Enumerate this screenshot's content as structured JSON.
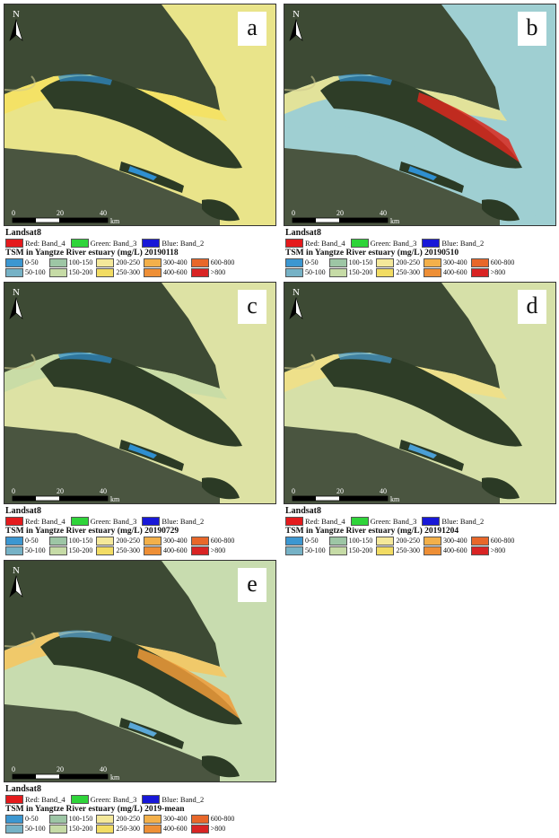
{
  "figure": {
    "panels": [
      {
        "letter": "a",
        "title": "TSM in Yangtze River estuary (mg/L) 20190118",
        "water": "#e9e48a",
        "water2": "#f4e266",
        "accent": "#2f8fd0",
        "hot": ""
      },
      {
        "letter": "b",
        "title": "TSM in Yangtze River estuary (mg/L) 20190510",
        "water": "#9fcfd2",
        "water2": "#e2e29a",
        "accent": "#2f8fd0",
        "hot": "#d9281e"
      },
      {
        "letter": "c",
        "title": "TSM in Yangtze River estuary (mg/L) 20190729",
        "water": "#dde2a4",
        "water2": "#c9dca6",
        "accent": "#2f8fd0",
        "hot": ""
      },
      {
        "letter": "d",
        "title": "TSM in Yangtze River estuary (mg/L) 20191204",
        "water": "#d6e0a8",
        "water2": "#eee08a",
        "accent": "#4a9fd5",
        "hot": ""
      },
      {
        "letter": "e",
        "title": "TSM in Yangtze River estuary (mg/L) 2019-mean",
        "water": "#c8dcaf",
        "water2": "#f0c96a",
        "accent": "#5aa7d6",
        "hot": "#ef9b3a"
      }
    ]
  },
  "scale": {
    "ticks": [
      "0",
      "20",
      "40"
    ],
    "unit": "km"
  },
  "north_label": "N",
  "legend": {
    "sensor": "Landsat8",
    "rgb": [
      {
        "label": "Red: Band_4",
        "color": "#e41a1c"
      },
      {
        "label": "Green: Band_3",
        "color": "#2fd43a"
      },
      {
        "label": "Blue: Band_2",
        "color": "#1818d8"
      }
    ],
    "classes": [
      {
        "label": "0-50",
        "color": "#3c97d1"
      },
      {
        "label": "100-150",
        "color": "#9dc6a5"
      },
      {
        "label": "200-250",
        "color": "#f4e89a"
      },
      {
        "label": "300-400",
        "color": "#f3b04a"
      },
      {
        "label": "600-800",
        "color": "#e8672a"
      },
      {
        "label": "",
        "color": ""
      },
      {
        "label": "50-100",
        "color": "#76b2c6"
      },
      {
        "label": "150-200",
        "color": "#c6dba6"
      },
      {
        "label": "250-300",
        "color": "#f2dc63"
      },
      {
        "label": "400-600",
        "color": "#ee8f36"
      },
      {
        "label": ">800",
        "color": "#d92424"
      },
      {
        "label": "",
        "color": ""
      }
    ]
  }
}
